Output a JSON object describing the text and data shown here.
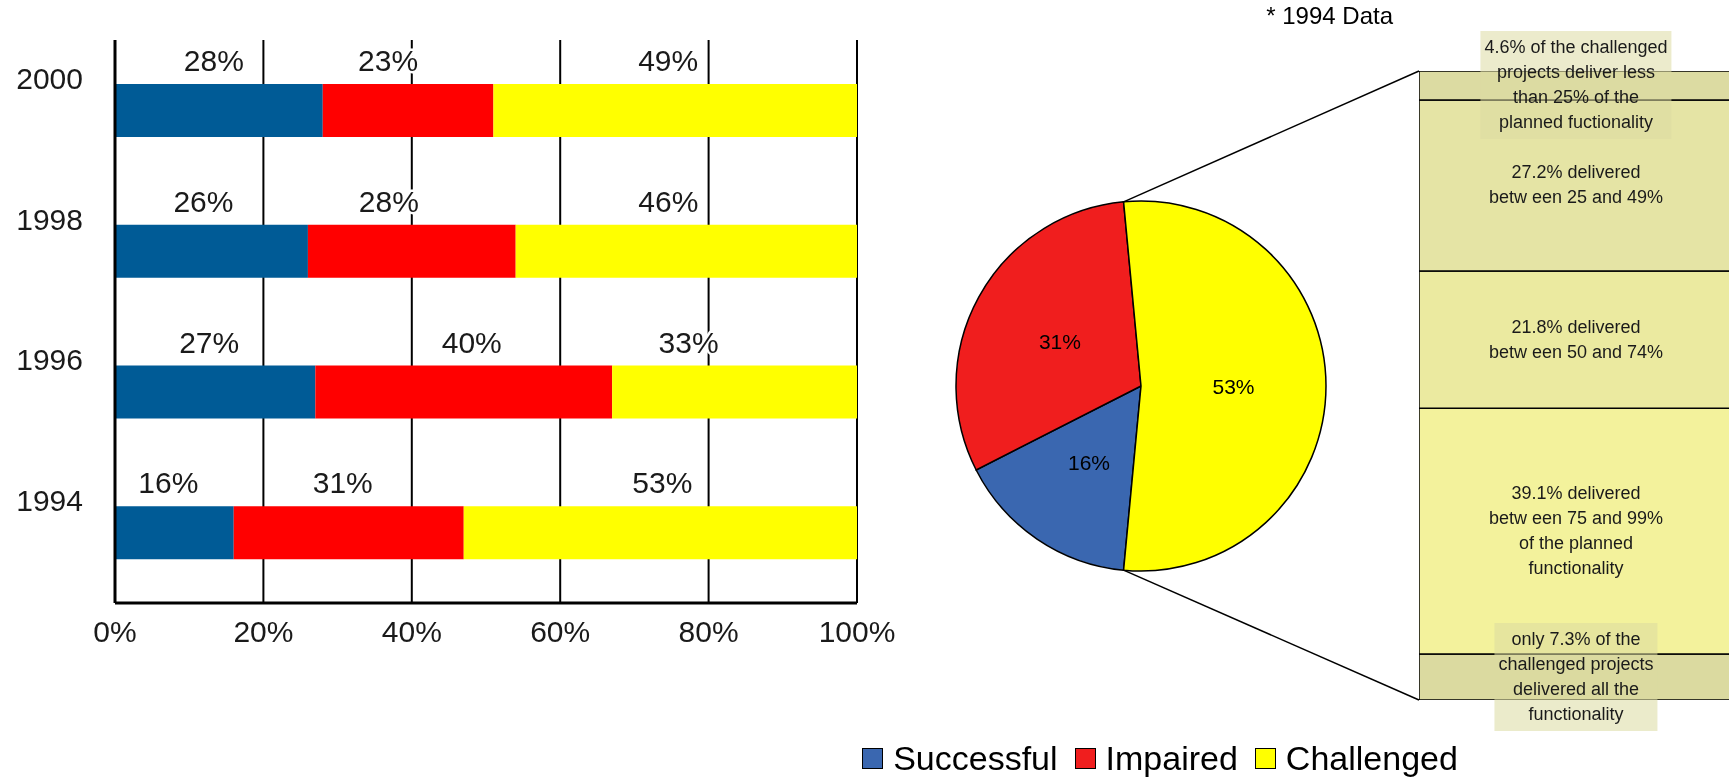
{
  "chart_data": [
    {
      "type": "bar",
      "orientation": "horizontal",
      "stacked": true,
      "categories": [
        "2000",
        "1998",
        "1996",
        "1994"
      ],
      "series": [
        {
          "color": "#005b96",
          "values": [
            28,
            26,
            27,
            16
          ],
          "value_labels": [
            "28%",
            "26%",
            "27%",
            "16%"
          ]
        },
        {
          "color": "#ff0000",
          "values": [
            23,
            28,
            40,
            31
          ],
          "value_labels": [
            "23%",
            "28%",
            "40%",
            "31%"
          ]
        },
        {
          "color": "#ffff00",
          "values": [
            49,
            46,
            33,
            53
          ],
          "value_labels": [
            "49%",
            "46%",
            "33%",
            "53%"
          ]
        }
      ],
      "xlim": [
        0,
        100
      ],
      "xticks": [
        {
          "value": 0,
          "label": "0%"
        },
        {
          "value": 20,
          "label": "20%"
        },
        {
          "value": 40,
          "label": "40%"
        },
        {
          "value": 60,
          "label": "60%"
        },
        {
          "value": 80,
          "label": "80%"
        },
        {
          "value": 100,
          "label": "100%"
        }
      ],
      "grid": "x"
    },
    {
      "type": "pie",
      "categories": [
        "Successful",
        "Impaired",
        "Challenged"
      ],
      "values": [
        16,
        31,
        53
      ],
      "colors": [
        "#3a67b0",
        "#f01e1e",
        "#ffff00"
      ],
      "value_labels": [
        "16%",
        "31%",
        "53%"
      ],
      "legend": "bottom",
      "annotations": [
        "* 1994 Data"
      ]
    },
    {
      "type": "bar",
      "stacked": true,
      "categories": [
        null
      ],
      "series": [
        {
          "color": "#dbdaa0",
          "values": [
            7.3
          ],
          "value_labels": [
            "only 7.3% of the\nchallenged projects\ndelivered all the\nfunctionality"
          ]
        },
        {
          "color": "#f3f29c",
          "values": [
            39.1
          ],
          "value_labels": [
            "39.1% delivered\nbetw een 75 and 99%\nof the planned\nfunctionality"
          ]
        },
        {
          "color": "#ebeaa0",
          "values": [
            21.8
          ],
          "value_labels": [
            "21.8% delivered\nbetw een 50 and 74%"
          ]
        },
        {
          "color": "#e5e4a5",
          "values": [
            27.2
          ],
          "value_labels": [
            "27.2% delivered\nbetw een 25 and 49%"
          ]
        },
        {
          "color": "#dcdba2",
          "values": [
            4.6
          ],
          "value_labels": [
            "4.6% of the challenged\nprojects deliver less\nthan 25% of the\nplanned fuctionality"
          ]
        }
      ],
      "ylim": [
        0,
        100
      ]
    }
  ]
}
